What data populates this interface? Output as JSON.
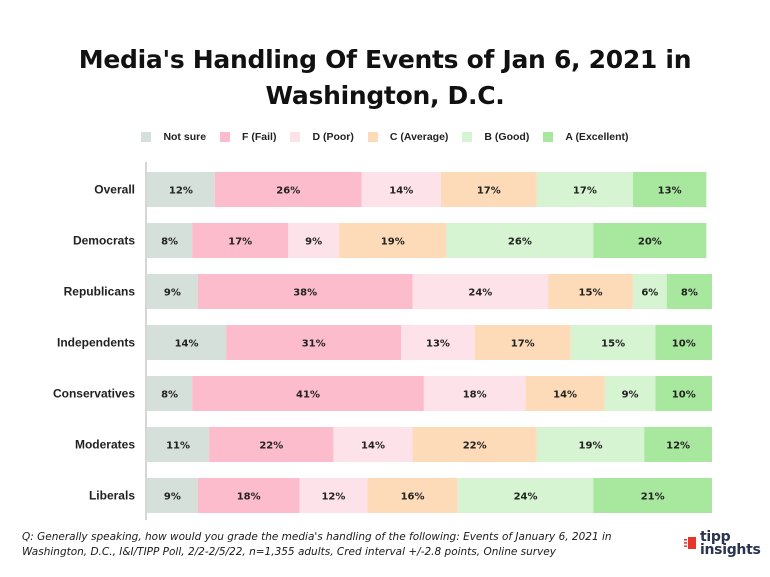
{
  "chart_data": {
    "type": "bar",
    "orientation": "horizontal",
    "stacked": true,
    "title": "Media's Handling Of Events of Jan 6, 2021 in Washington, D.C.",
    "title_lines": [
      "Media's Handling Of Events of Jan 6, 2021 in",
      "Washington, D.C."
    ],
    "xlabel": "",
    "ylabel": "",
    "legend_position": "top",
    "grid": false,
    "value_format": "percent",
    "categories": [
      "Overall",
      "Democrats",
      "Republicans",
      "Independents",
      "Conservatives",
      "Moderates",
      "Liberals"
    ],
    "series": [
      {
        "name": "Not sure",
        "color": "#d6e0da",
        "values": [
          12,
          8,
          9,
          14,
          8,
          11,
          9
        ]
      },
      {
        "name": "F (Fail)",
        "color": "#fdbccc",
        "values": [
          26,
          17,
          38,
          31,
          41,
          22,
          18
        ]
      },
      {
        "name": "D (Poor)",
        "color": "#fde2e9",
        "values": [
          14,
          9,
          24,
          13,
          18,
          14,
          12
        ]
      },
      {
        "name": "C (Average)",
        "color": "#fedbb8",
        "values": [
          17,
          19,
          15,
          17,
          14,
          22,
          16
        ]
      },
      {
        "name": "B (Good)",
        "color": "#d6f3d2",
        "values": [
          17,
          26,
          6,
          15,
          9,
          19,
          24
        ]
      },
      {
        "name": "A (Excellent)",
        "color": "#a8e89e",
        "values": [
          13,
          20,
          8,
          10,
          10,
          12,
          21
        ]
      }
    ]
  },
  "footnote": "Q:  Generally speaking, how would you grade the media's handling of the following: Events of January 6, 2021 in Washington, D.C., I&I/TIPP Poll, 2/2-2/5/22, n=1,355 adults, Cred interval +/-2.8 points, Online survey",
  "logo": {
    "line1": "tipp",
    "line2": "insights",
    "mark_color": "#e8332a",
    "text_color": "#2a3350"
  }
}
